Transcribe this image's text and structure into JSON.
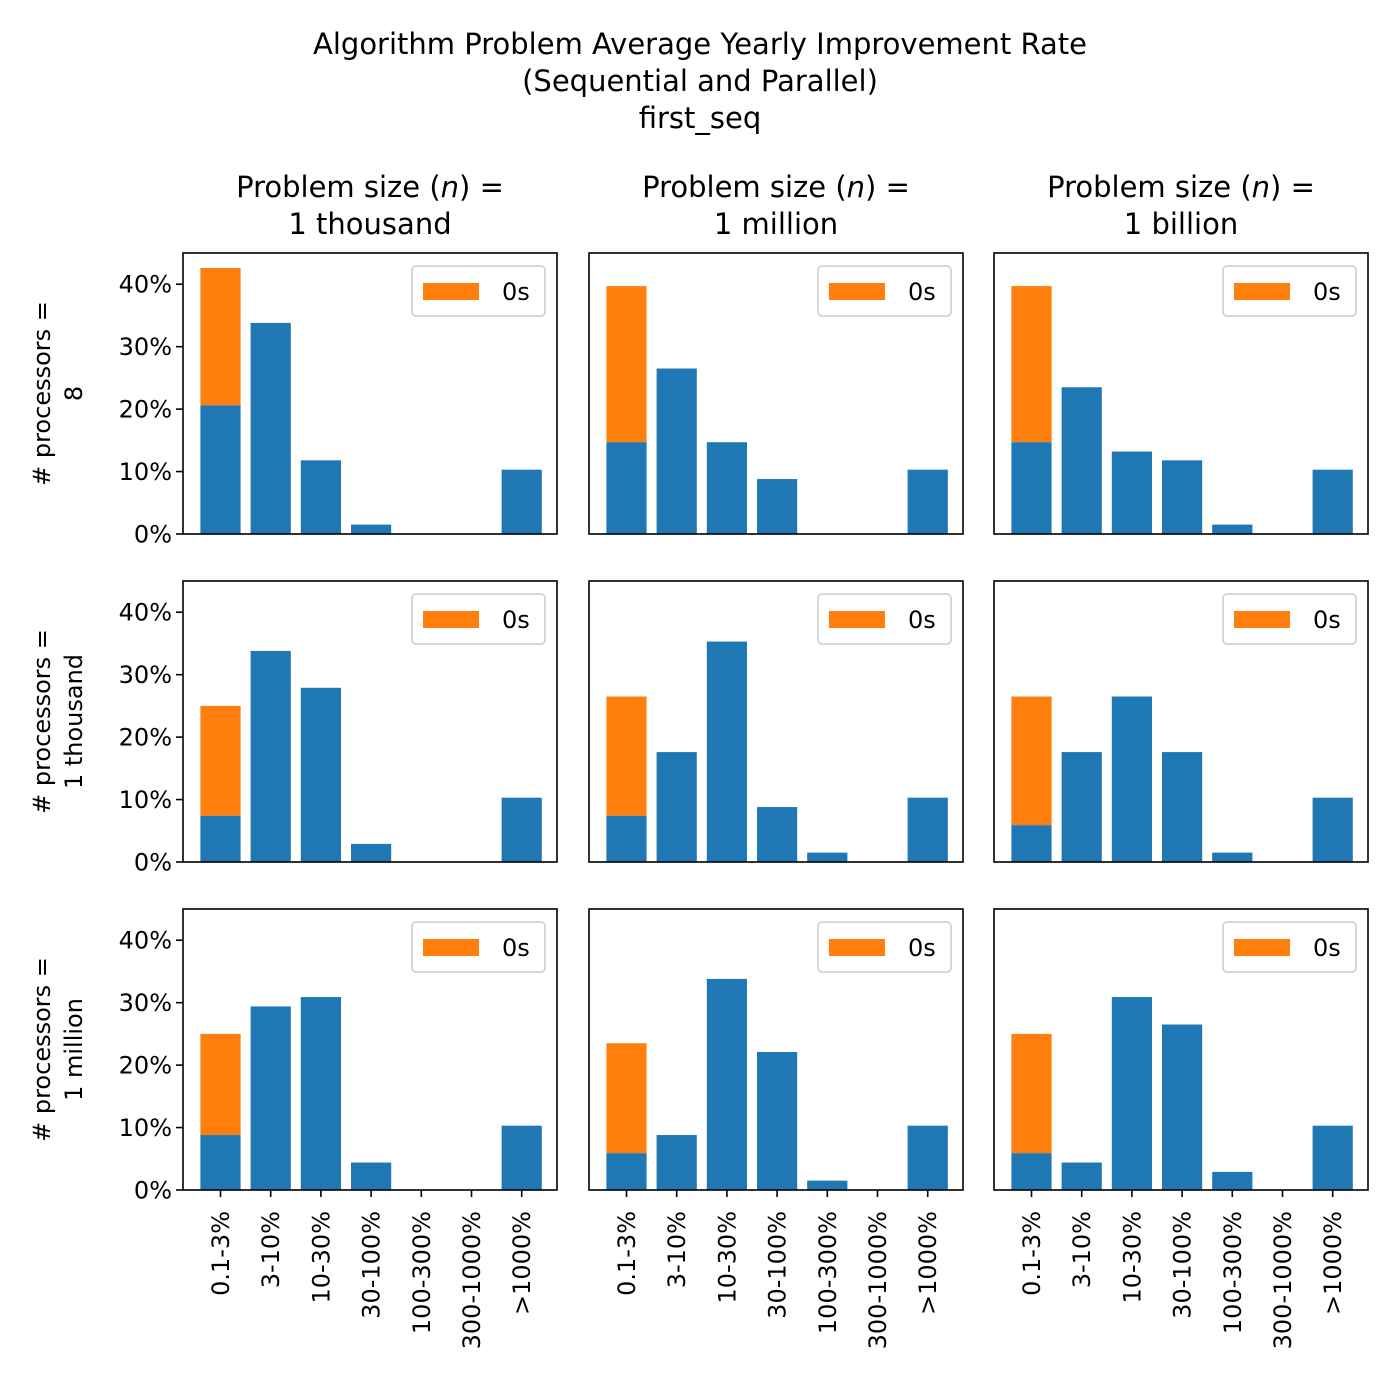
{
  "title_lines": [
    "Algorithm Problem Average Yearly Improvement Rate",
    "(Sequential and Parallel)",
    "first_seq"
  ],
  "col_titles": [
    [
      "Problem size (",
      "n",
      ") =",
      "1 thousand"
    ],
    [
      "Problem size (",
      "n",
      ") =",
      "1 million"
    ],
    [
      "Problem size (",
      "n",
      ") =",
      "1 billion"
    ]
  ],
  "row_titles": [
    [
      "# processors =",
      "8"
    ],
    [
      "# processors =",
      "1 thousand"
    ],
    [
      "# processors =",
      "1 million"
    ]
  ],
  "colors": {
    "blue": "#1f77b4",
    "orange": "#ff7f0e"
  },
  "chart_data": {
    "type": "bar",
    "stacked": true,
    "categories": [
      "0.1-3%",
      "3-10%",
      "10-30%",
      "30-100%",
      "100-300%",
      "300-1000%",
      ">1000%"
    ],
    "ylim": [
      0,
      45
    ],
    "yticks": [
      0,
      10,
      20,
      30,
      40
    ],
    "ytick_labels": [
      "0%",
      "10%",
      "20%",
      "30%",
      "40%"
    ],
    "legend": {
      "label": "0s",
      "placement": "top-right"
    },
    "panels": [
      [
        {
          "blue": [
            20.6,
            33.8,
            11.8,
            1.5,
            0,
            0,
            10.3
          ],
          "orange_top": 42.6
        },
        {
          "blue": [
            14.7,
            26.5,
            14.7,
            8.8,
            0,
            0,
            10.3
          ],
          "orange_top": 39.7
        },
        {
          "blue": [
            14.7,
            23.5,
            13.2,
            11.8,
            1.5,
            0,
            10.3
          ],
          "orange_top": 39.7
        }
      ],
      [
        {
          "blue": [
            7.4,
            33.8,
            27.9,
            2.9,
            0,
            0,
            10.3
          ],
          "orange_top": 25.0
        },
        {
          "blue": [
            7.4,
            17.6,
            35.3,
            8.8,
            1.5,
            0,
            10.3
          ],
          "orange_top": 26.5
        },
        {
          "blue": [
            5.9,
            17.6,
            26.5,
            17.6,
            1.5,
            0,
            10.3
          ],
          "orange_top": 26.5
        }
      ],
      [
        {
          "blue": [
            8.8,
            29.4,
            30.9,
            4.4,
            0,
            0,
            10.3
          ],
          "orange_top": 25.0
        },
        {
          "blue": [
            5.9,
            8.8,
            33.8,
            22.1,
            1.5,
            0,
            10.3
          ],
          "orange_top": 23.5
        },
        {
          "blue": [
            5.9,
            4.4,
            30.9,
            26.5,
            2.9,
            0,
            10.3
          ],
          "orange_top": 25.0
        }
      ]
    ]
  }
}
